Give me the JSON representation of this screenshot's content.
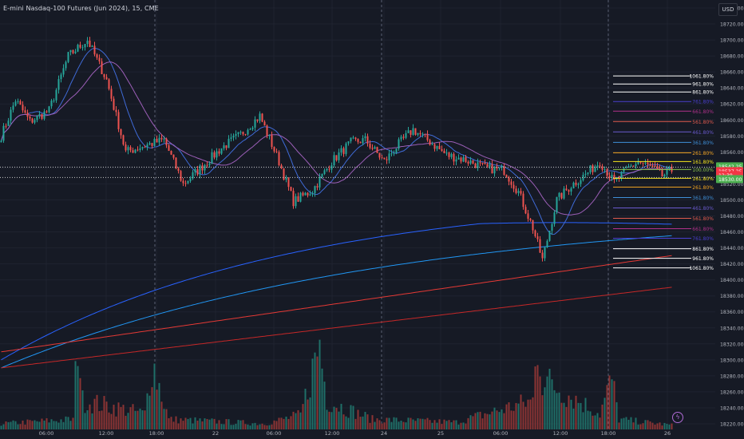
{
  "header": {
    "title": "E-mini Nasdaq-100 Futures (Jun 2024), 15, CME",
    "currency": "USD"
  },
  "chart_data": {
    "type": "candlestick",
    "title": "E-mini Nasdaq-100 Futures (Jun 2024), 15, CME",
    "ylim": [
      18213,
      18750
    ],
    "y_ticks": [
      18740,
      18720,
      18700,
      18680,
      18660,
      18640,
      18620,
      18600,
      18580,
      18560,
      18540,
      18520,
      18500,
      18480,
      18460,
      18440,
      18420,
      18400,
      18380,
      18360,
      18340,
      18320,
      18300,
      18280,
      18260,
      18240,
      18220
    ],
    "x_ticks": [
      "06:00",
      "12:00",
      "18:00",
      "22",
      "06:00",
      "12:00",
      "24",
      "25",
      "06:00",
      "12:00",
      "18:00",
      "26"
    ],
    "session_separators": [
      "18:00",
      "24",
      "18:00"
    ],
    "price_key_points": [
      [
        0,
        18580
      ],
      [
        6,
        18625
      ],
      [
        12,
        18598
      ],
      [
        20,
        18612
      ],
      [
        28,
        18680
      ],
      [
        36,
        18700
      ],
      [
        44,
        18650
      ],
      [
        52,
        18560
      ],
      [
        60,
        18568
      ],
      [
        68,
        18575
      ],
      [
        76,
        18520
      ],
      [
        84,
        18542
      ],
      [
        92,
        18565
      ],
      [
        100,
        18582
      ],
      [
        108,
        18605
      ],
      [
        116,
        18548
      ],
      [
        122,
        18498
      ],
      [
        130,
        18512
      ],
      [
        138,
        18548
      ],
      [
        146,
        18572
      ],
      [
        152,
        18575
      ],
      [
        160,
        18548
      ],
      [
        166,
        18570
      ],
      [
        172,
        18588
      ],
      [
        178,
        18575
      ],
      [
        186,
        18556
      ],
      [
        194,
        18550
      ],
      [
        202,
        18540
      ],
      [
        210,
        18537
      ],
      [
        216,
        18510
      ],
      [
        222,
        18465
      ],
      [
        226,
        18425
      ],
      [
        232,
        18500
      ],
      [
        238,
        18518
      ],
      [
        244,
        18532
      ],
      [
        250,
        18548
      ],
      [
        256,
        18522
      ],
      [
        262,
        18540
      ],
      [
        266,
        18548
      ],
      [
        272,
        18540
      ],
      [
        276,
        18530
      ],
      [
        280,
        18537
      ]
    ],
    "volume_key_points": [
      [
        0,
        8
      ],
      [
        30,
        14
      ],
      [
        32,
        130
      ],
      [
        34,
        40
      ],
      [
        60,
        22
      ],
      [
        63,
        95
      ],
      [
        70,
        14
      ],
      [
        110,
        8
      ],
      [
        125,
        20
      ],
      [
        133,
        120
      ],
      [
        136,
        40
      ],
      [
        155,
        14
      ],
      [
        190,
        10
      ],
      [
        222,
        40
      ],
      [
        224,
        125
      ],
      [
        226,
        70
      ],
      [
        250,
        22
      ],
      [
        255,
        70
      ],
      [
        258,
        14
      ],
      [
        280,
        6
      ]
    ],
    "fib_levels": [
      {
        "label": "1061.80%",
        "value": 18655,
        "color": "#ffffff"
      },
      {
        "label": "961.80%",
        "value": 18645,
        "color": "#ffffff"
      },
      {
        "label": "861.80%",
        "value": 18635,
        "color": "#ffffff"
      },
      {
        "label": "761.80%",
        "value": 18623,
        "color": "#4a3fd0"
      },
      {
        "label": "661.80%",
        "value": 18611,
        "color": "#b0318a"
      },
      {
        "label": "561.80%",
        "value": 18598,
        "color": "#e05a4e"
      },
      {
        "label": "461.80%",
        "value": 18585,
        "color": "#6a5acd"
      },
      {
        "label": "361.80%",
        "value": 18572,
        "color": "#3f8fd8"
      },
      {
        "label": "261.80%",
        "value": 18559,
        "color": "#f5a623"
      },
      {
        "label": "161.80%",
        "value": 18548,
        "color": "#f8e71c"
      },
      {
        "label": "100.00%",
        "value": 18538,
        "color": "#8bc34a"
      },
      {
        "label": "161.80%",
        "value": 18527,
        "color": "#f8e71c"
      },
      {
        "label": "261.80%",
        "value": 18516,
        "color": "#f5a623"
      },
      {
        "label": "361.80%",
        "value": 18503,
        "color": "#3f8fd8"
      },
      {
        "label": "461.80%",
        "value": 18490,
        "color": "#6a5acd"
      },
      {
        "label": "561.80%",
        "value": 18477,
        "color": "#e05a4e"
      },
      {
        "label": "661.80%",
        "value": 18464,
        "color": "#b0318a"
      },
      {
        "label": "761.80%",
        "value": 18452,
        "color": "#4a3fd0"
      },
      {
        "label": "861.80%",
        "value": 18439,
        "color": "#ffffff"
      },
      {
        "label": "961.80%",
        "value": 18427,
        "color": "#ffffff"
      },
      {
        "label": "1061.80%",
        "value": 18415,
        "color": "#ffffff"
      }
    ],
    "price_tags": [
      {
        "label": "18542.25",
        "value": 18542,
        "color": "#4caf50"
      },
      {
        "label": "18537.25",
        "value": 18536,
        "color": "#f23645"
      },
      {
        "label": "12:38",
        "value": 18531,
        "color": "#f23645"
      },
      {
        "label": "18530.00",
        "value": 18526,
        "color": "#4caf50"
      }
    ],
    "colors": {
      "up": "#26a69a",
      "down": "#ef5350",
      "grid": "#1f2330",
      "background": "#161a25"
    }
  }
}
